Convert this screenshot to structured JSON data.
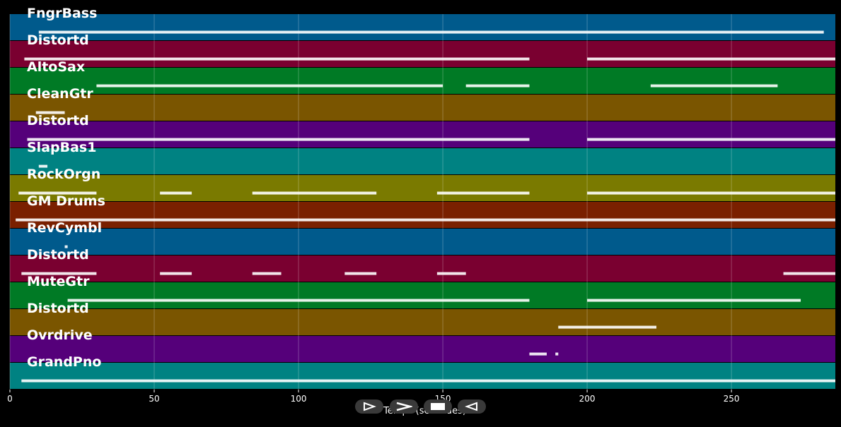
{
  "chart_data": {
    "type": "piano-roll",
    "xlabel": "Temps (secondes)",
    "xlim": [
      0,
      286
    ],
    "xticks": [
      0,
      50,
      100,
      150,
      200,
      250
    ],
    "tracks": [
      {
        "name": "FngrBass",
        "color": "#005a8c",
        "segments": [
          [
            10,
            282
          ]
        ]
      },
      {
        "name": "Distortd",
        "color": "#7a0030",
        "segments": [
          [
            5,
            180
          ],
          [
            200,
            286
          ]
        ]
      },
      {
        "name": "AltoSax",
        "color": "#007a25",
        "segments": [
          [
            30,
            150
          ],
          [
            158,
            180
          ],
          [
            222,
            266
          ]
        ]
      },
      {
        "name": "CleanGtr",
        "color": "#7a5500",
        "segments": [
          [
            9,
            19
          ]
        ]
      },
      {
        "name": "Distortd",
        "color": "#55007a",
        "segments": [
          [
            6,
            180
          ],
          [
            200,
            286
          ]
        ]
      },
      {
        "name": "SlapBas1",
        "color": "#008282",
        "segments": [
          [
            10,
            13
          ]
        ]
      },
      {
        "name": "RockOrgn",
        "color": "#7a7a00",
        "segments": [
          [
            3,
            30
          ],
          [
            52,
            63
          ],
          [
            84,
            127
          ],
          [
            148,
            180
          ],
          [
            200,
            286
          ]
        ]
      },
      {
        "name": "GM Drums",
        "color": "#7a2000",
        "segments": [
          [
            2,
            286
          ]
        ]
      },
      {
        "name": "RevCymbl",
        "color": "#005a8c",
        "segments": [
          [
            19,
            20
          ]
        ]
      },
      {
        "name": "Distortd",
        "color": "#7a0030",
        "segments": [
          [
            4,
            30
          ],
          [
            52,
            63
          ],
          [
            84,
            94
          ],
          [
            116,
            127
          ],
          [
            148,
            158
          ],
          [
            268,
            286
          ]
        ]
      },
      {
        "name": "MuteGtr",
        "color": "#007a25",
        "segments": [
          [
            20,
            180
          ],
          [
            200,
            274
          ]
        ]
      },
      {
        "name": "Distortd",
        "color": "#7a5500",
        "segments": [
          [
            190,
            224
          ]
        ]
      },
      {
        "name": "Ovrdrive",
        "color": "#55007a",
        "segments": [
          [
            180,
            186
          ],
          [
            189,
            190
          ]
        ]
      },
      {
        "name": "GrandPno",
        "color": "#008282",
        "segments": [
          [
            4,
            286
          ]
        ]
      }
    ]
  },
  "controls": [
    {
      "name": "play-backward-button",
      "glyph": "⊳"
    },
    {
      "name": "play-button",
      "glyph": "⋗"
    },
    {
      "name": "stop-button",
      "glyph": "■"
    },
    {
      "name": "rewind-button",
      "glyph": "◁"
    }
  ]
}
